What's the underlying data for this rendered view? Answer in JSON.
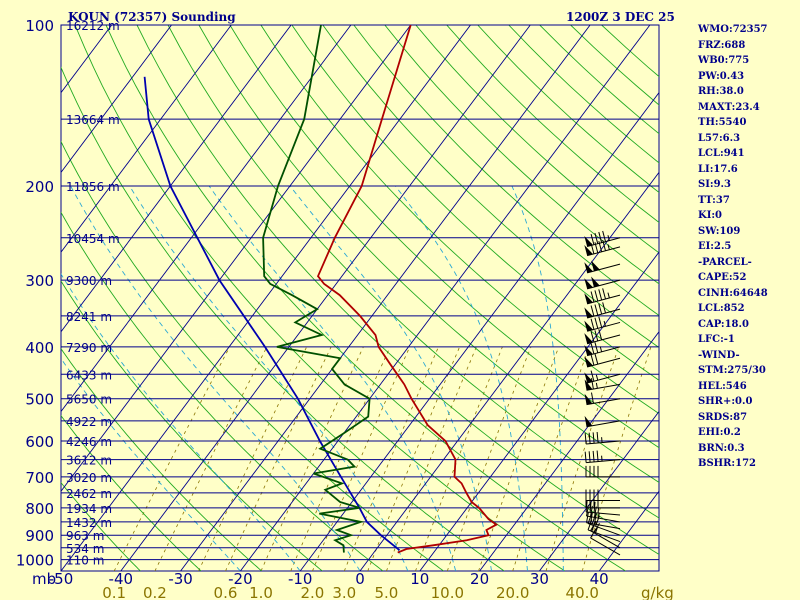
{
  "header": {
    "station": "KOUN (72357) Sounding",
    "time": "1200Z  3 DEC 25"
  },
  "indices": [
    "WMO:72357",
    "FRZ:688",
    "WB0:775",
    "PW:0.43",
    "RH:38.0",
    "MAXT:23.4",
    "TH:5540",
    "L57:6.3",
    "LCL:941",
    "LI:17.6",
    "SI:9.3",
    "TT:37",
    "KI:0",
    "SW:109",
    "EI:2.5",
    "-PARCEL-",
    "CAPE:52",
    "CINH:64648",
    "LCL:852",
    "CAP:18.0",
    "LFC:-1",
    "-WIND-",
    "STM:275/30",
    "HEL:546",
    "SHR+:0.0",
    "SRDS:87",
    "EHI:0.2",
    "BRN:0.3",
    "BSHR:172"
  ],
  "axis": {
    "pressure_unit": "mb",
    "mixing_ratio_unit": "g/kg"
  },
  "colors": {
    "background": "#ffffc8",
    "isobar": "#00008b",
    "isotherm": "#00008b",
    "dry_adiabat": "#22aa22",
    "moist_adiabat": "#2aa8d4",
    "mixing_ratio": "#8b7500",
    "temperature": "#b00000",
    "dewpoint": "#005000",
    "parcel": "#0000b0",
    "wind": "#000000"
  },
  "chart_data": {
    "type": "skew-t",
    "pressure_levels": [
      {
        "p": 100,
        "label": "100",
        "height": "16212 m"
      },
      {
        "p": 150,
        "label": "",
        "height": "13664 m"
      },
      {
        "p": 200,
        "label": "200",
        "height": "11856 m"
      },
      {
        "p": 250,
        "label": "",
        "height": "10454 m"
      },
      {
        "p": 300,
        "label": "300",
        "height": "9300 m"
      },
      {
        "p": 350,
        "label": "",
        "height": "8241 m"
      },
      {
        "p": 400,
        "label": "400",
        "height": "7290 m"
      },
      {
        "p": 450,
        "label": "",
        "height": "6433 m"
      },
      {
        "p": 500,
        "label": "500",
        "height": "5650 m"
      },
      {
        "p": 550,
        "label": "",
        "height": "4922 m"
      },
      {
        "p": 600,
        "label": "600",
        "height": "4246 m"
      },
      {
        "p": 650,
        "label": "",
        "height": "3612 m"
      },
      {
        "p": 700,
        "label": "700",
        "height": "3020 m"
      },
      {
        "p": 750,
        "label": "",
        "height": "2462 m"
      },
      {
        "p": 800,
        "label": "800",
        "height": "1934 m"
      },
      {
        "p": 850,
        "label": "",
        "height": "1432 m"
      },
      {
        "p": 900,
        "label": "900",
        "height": "963 m"
      },
      {
        "p": 950,
        "label": "",
        "height": "534 m"
      },
      {
        "p": 1000,
        "label": "1000",
        "height": "110 m"
      }
    ],
    "temperature_ticks": [
      "-50",
      "-40",
      "-30",
      "-20",
      "-10",
      "0",
      "10",
      "20",
      "30",
      "40"
    ],
    "mixing_ratio_ticks": [
      "0.1",
      "0.2",
      "0.6",
      "1.0",
      "2.0",
      "3.0",
      "5.0",
      "10.0",
      "20.0",
      "40.0"
    ],
    "pressure_range": [
      100,
      1050
    ],
    "temperature_range_at_surface": [
      -50,
      50
    ],
    "temperature": [
      {
        "p": 970,
        "t": 4
      },
      {
        "p": 955,
        "t": 5
      },
      {
        "p": 940,
        "t": 9
      },
      {
        "p": 920,
        "t": 14
      },
      {
        "p": 900,
        "t": 17
      },
      {
        "p": 880,
        "t": 16
      },
      {
        "p": 860,
        "t": 17
      },
      {
        "p": 840,
        "t": 15
      },
      {
        "p": 800,
        "t": 12
      },
      {
        "p": 780,
        "t": 10
      },
      {
        "p": 750,
        "t": 8
      },
      {
        "p": 720,
        "t": 6
      },
      {
        "p": 700,
        "t": 4
      },
      {
        "p": 650,
        "t": 2
      },
      {
        "p": 600,
        "t": -2
      },
      {
        "p": 560,
        "t": -7
      },
      {
        "p": 500,
        "t": -13
      },
      {
        "p": 470,
        "t": -16
      },
      {
        "p": 430,
        "t": -21
      },
      {
        "p": 400,
        "t": -25
      },
      {
        "p": 380,
        "t": -27
      },
      {
        "p": 350,
        "t": -32
      },
      {
        "p": 320,
        "t": -38
      },
      {
        "p": 305,
        "t": -42
      },
      {
        "p": 295,
        "t": -44
      },
      {
        "p": 250,
        "t": -46
      },
      {
        "p": 200,
        "t": -48
      },
      {
        "p": 150,
        "t": -53
      },
      {
        "p": 100,
        "t": -60
      }
    ],
    "dewpoint": [
      {
        "p": 970,
        "t": -5
      },
      {
        "p": 940,
        "t": -6
      },
      {
        "p": 920,
        "t": -8
      },
      {
        "p": 900,
        "t": -6
      },
      {
        "p": 880,
        "t": -9
      },
      {
        "p": 850,
        "t": -6
      },
      {
        "p": 820,
        "t": -14
      },
      {
        "p": 800,
        "t": -8
      },
      {
        "p": 780,
        "t": -12
      },
      {
        "p": 740,
        "t": -16
      },
      {
        "p": 720,
        "t": -14
      },
      {
        "p": 690,
        "t": -20
      },
      {
        "p": 670,
        "t": -14
      },
      {
        "p": 650,
        "t": -16
      },
      {
        "p": 620,
        "t": -22
      },
      {
        "p": 580,
        "t": -20
      },
      {
        "p": 540,
        "t": -18
      },
      {
        "p": 500,
        "t": -20
      },
      {
        "p": 470,
        "t": -26
      },
      {
        "p": 440,
        "t": -30
      },
      {
        "p": 420,
        "t": -30
      },
      {
        "p": 400,
        "t": -42
      },
      {
        "p": 380,
        "t": -36
      },
      {
        "p": 360,
        "t": -42
      },
      {
        "p": 340,
        "t": -40
      },
      {
        "p": 320,
        "t": -46
      },
      {
        "p": 305,
        "t": -51
      },
      {
        "p": 295,
        "t": -53
      },
      {
        "p": 250,
        "t": -58
      },
      {
        "p": 200,
        "t": -62
      },
      {
        "p": 150,
        "t": -66
      },
      {
        "p": 100,
        "t": -75
      }
    ],
    "parcel": [
      {
        "p": 960,
        "t": 4
      },
      {
        "p": 900,
        "t": -1
      },
      {
        "p": 850,
        "t": -5
      },
      {
        "p": 800,
        "t": -8
      },
      {
        "p": 700,
        "t": -15
      },
      {
        "p": 600,
        "t": -23
      },
      {
        "p": 500,
        "t": -32
      },
      {
        "p": 400,
        "t": -44
      },
      {
        "p": 300,
        "t": -60
      },
      {
        "p": 200,
        "t": -80
      },
      {
        "p": 150,
        "t": -92
      },
      {
        "p": 125,
        "t": -98
      }
    ],
    "wind_barbs": [
      {
        "p": 980,
        "dir": 300,
        "spd": 10
      },
      {
        "p": 950,
        "dir": 300,
        "spd": 20
      },
      {
        "p": 925,
        "dir": 290,
        "spd": 25
      },
      {
        "p": 900,
        "dir": 290,
        "spd": 30
      },
      {
        "p": 875,
        "dir": 280,
        "spd": 30
      },
      {
        "p": 850,
        "dir": 280,
        "spd": 35
      },
      {
        "p": 825,
        "dir": 275,
        "spd": 35
      },
      {
        "p": 800,
        "dir": 270,
        "spd": 40
      },
      {
        "p": 775,
        "dir": 270,
        "spd": 40
      },
      {
        "p": 700,
        "dir": 270,
        "spd": 40
      },
      {
        "p": 650,
        "dir": 265,
        "spd": 45
      },
      {
        "p": 600,
        "dir": 265,
        "spd": 45
      },
      {
        "p": 550,
        "dir": 260,
        "spd": 50
      },
      {
        "p": 500,
        "dir": 260,
        "spd": 60
      },
      {
        "p": 470,
        "dir": 260,
        "spd": 65
      },
      {
        "p": 450,
        "dir": 255,
        "spd": 65
      },
      {
        "p": 420,
        "dir": 255,
        "spd": 70
      },
      {
        "p": 400,
        "dir": 255,
        "spd": 75
      },
      {
        "p": 380,
        "dir": 255,
        "spd": 80
      },
      {
        "p": 360,
        "dir": 255,
        "spd": 85
      },
      {
        "p": 340,
        "dir": 255,
        "spd": 90
      },
      {
        "p": 320,
        "dir": 255,
        "spd": 95
      },
      {
        "p": 300,
        "dir": 255,
        "spd": 100
      },
      {
        "p": 280,
        "dir": 255,
        "spd": 100
      },
      {
        "p": 260,
        "dir": 255,
        "spd": 95
      },
      {
        "p": 250,
        "dir": 255,
        "spd": 95
      }
    ]
  }
}
